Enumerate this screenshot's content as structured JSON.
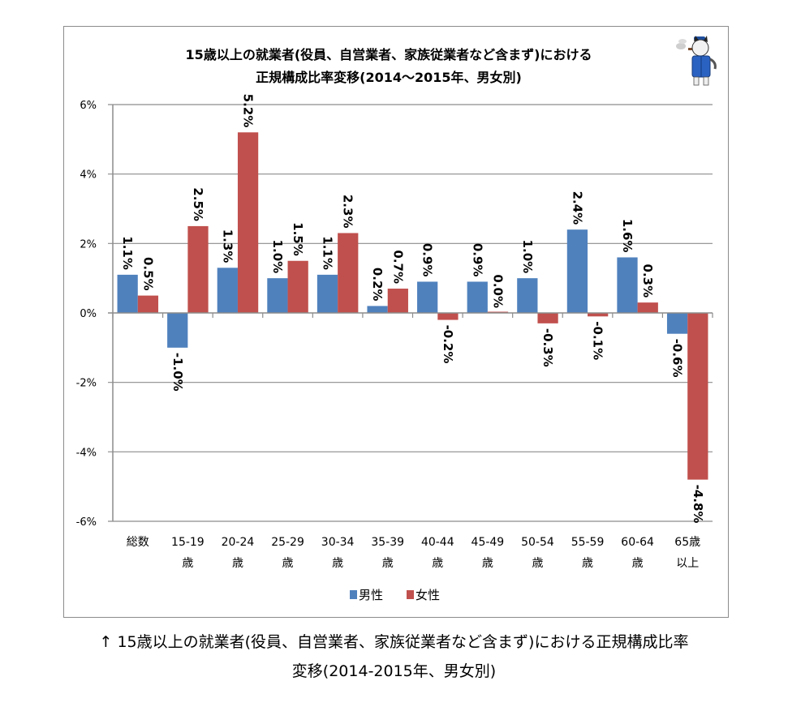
{
  "chart_data": {
    "type": "bar",
    "title_lines": [
      "15歳以上の就業者(役員、自営業者、家族従業者など含まず)における",
      "正規構成比率変移(2014～2015年、男女別)"
    ],
    "categories": [
      [
        "総数"
      ],
      [
        "15-19",
        "歳"
      ],
      [
        "20-24",
        "歳"
      ],
      [
        "25-29",
        "歳"
      ],
      [
        "30-34",
        "歳"
      ],
      [
        "35-39",
        "歳"
      ],
      [
        "40-44",
        "歳"
      ],
      [
        "45-49",
        "歳"
      ],
      [
        "50-54",
        "歳"
      ],
      [
        "55-59",
        "歳"
      ],
      [
        "60-64",
        "歳"
      ],
      [
        "65歳",
        "以上"
      ]
    ],
    "series": [
      {
        "name": "男性",
        "color": "#4f81bd",
        "values": [
          1.1,
          -1.0,
          1.3,
          1.0,
          1.1,
          0.2,
          0.9,
          0.9,
          1.0,
          2.4,
          1.6,
          -0.6
        ],
        "labels": [
          "1.1%",
          "-1.0%",
          "1.3%",
          "1.0%",
          "1.1%",
          "0.2%",
          "0.9%",
          "0.9%",
          "1.0%",
          "2.4%",
          "1.6%",
          "-0.6%"
        ]
      },
      {
        "name": "女性",
        "color": "#c0504d",
        "values": [
          0.5,
          2.5,
          5.2,
          1.5,
          2.3,
          0.7,
          -0.2,
          0.0,
          -0.3,
          -0.1,
          0.3,
          -4.8
        ],
        "labels": [
          "0.5%",
          "2.5%",
          "5.2%",
          "1.5%",
          "2.3%",
          "0.7%",
          "-0.2%",
          "0.0%",
          "-0.3%",
          "-0.1%",
          "0.3%",
          "-4.8%"
        ]
      }
    ],
    "ylim": [
      -6,
      6
    ],
    "yticks": [
      6,
      4,
      2,
      0,
      -2,
      -4,
      -6
    ],
    "ytick_labels": [
      "6%",
      "4%",
      "2%",
      "0%",
      "-2%",
      "-4%",
      "-6%"
    ],
    "ylabel": "",
    "xlabel": "",
    "grid": true,
    "legend_position": "bottom",
    "data_label_orientation": "vertical"
  },
  "decoration": {
    "mascot_icon": "cat-mascot-icon"
  },
  "caption": {
    "arrow": "↑",
    "lines": [
      "15歳以上の就業者(役員、自営業者、家族従業者など含まず)における正規構成比率",
      "変移(2014-2015年、男女別)"
    ]
  }
}
